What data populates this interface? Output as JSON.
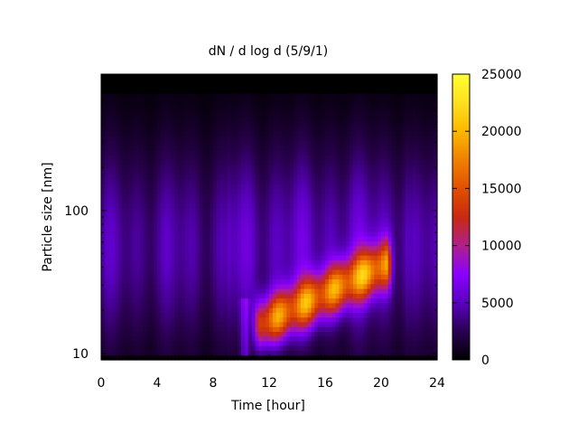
{
  "chart_data": {
    "type": "heatmap",
    "title": "dN / d log d (5/9/1)",
    "xlabel": "Time [hour]",
    "ylabel": "Particle size [nm]",
    "xlim": [
      0,
      24
    ],
    "ylim": [
      9,
      900
    ],
    "y_scale": "log",
    "x_ticks": [
      0,
      4,
      8,
      12,
      16,
      20,
      24
    ],
    "x_tick_labels": [
      "0",
      "4",
      "8",
      "12",
      "16",
      "20",
      "24"
    ],
    "y_ticks": [
      10,
      100
    ],
    "y_tick_labels": [
      "10",
      "100"
    ],
    "colorbar": {
      "range": [
        0,
        25000
      ],
      "ticks": [
        0,
        5000,
        10000,
        15000,
        20000,
        25000
      ],
      "tick_labels": [
        "0",
        "5000",
        "10000",
        "15000",
        "20000",
        "25000"
      ],
      "colormap": [
        "#000000",
        "#2a0050",
        "#5a00c0",
        "#8a00ff",
        "#b0208a",
        "#c82a10",
        "#e05000",
        "#f08000",
        "#fab800",
        "#ffe020",
        "#ffff30"
      ]
    },
    "background_value": 5500,
    "top_band": {
      "from_nm": 650,
      "value": 0
    },
    "bottom_band": {
      "to_nm": 9.5,
      "value": 200
    },
    "features": [
      {
        "label": "growing mode",
        "t_start": 11.5,
        "t_end": 20.3,
        "d_start_nm": 16,
        "d_end_nm": 42,
        "peak": 16500
      },
      {
        "label": "nucleation streak",
        "t": 10.3,
        "d_from_nm": 9,
        "d_to_nm": 25,
        "value": 3500
      }
    ],
    "grid": false
  }
}
